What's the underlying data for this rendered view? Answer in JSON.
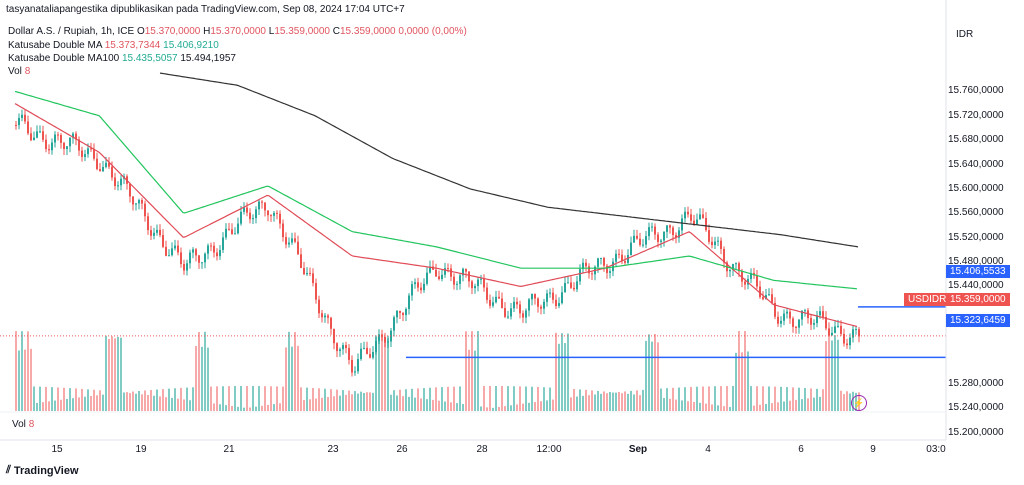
{
  "header": {
    "publisher_line": "tasyanataliapangestika dipublikasikan pada TradingView.com, Sep 08, 2024 17:04 UTC+7",
    "symbol_line": "Dollar A.S. / Rupiah, 1h, ICE",
    "ohlc": {
      "o_label": "O",
      "o_value": "15.370,0000",
      "h_label": "H",
      "h_value": "15.370,0000",
      "l_label": "L",
      "l_value": "15.359,0000",
      "c_label": "C",
      "c_value": "15.359,0000",
      "change": "0,0000 (0,00%)"
    },
    "ma_line_1": {
      "name": "Katusabe Double MA",
      "v1": "15.373,7344",
      "v2": "15.406,9210"
    },
    "ma_line_2": {
      "name": "Katusabe Double MA100",
      "v1": "15.435,5057",
      "v2": "15.494,1957"
    },
    "vol_line": {
      "name": "Vol",
      "value": "8"
    }
  },
  "vol_bottom": {
    "name": "Vol",
    "value": "8"
  },
  "unit": "IDR",
  "price_axis": [
    "15.760,0000",
    "15.720,0000",
    "15.680,0000",
    "15.640,0000",
    "15.600,0000",
    "15.560,0000",
    "15.520,0000",
    "15.480,0000",
    "15.440,0000",
    "15.280,0000",
    "15.240,0000",
    "15.200,0000"
  ],
  "tags": {
    "level_upper": "15.406,5533",
    "symbol": "USDIDR",
    "last_price": "15.359,0000",
    "level_lower": "15.323,6459"
  },
  "x_axis": [
    "15",
    "19",
    "21",
    "23",
    "26",
    "28",
    "12:00",
    "Sep",
    "4",
    "6",
    "9",
    "03:0"
  ],
  "footer": {
    "brand": "TradingView"
  },
  "colors": {
    "up": "#26a69a",
    "down": "#ef5350",
    "ma_fast": "#e04b57",
    "ma_slow": "#22c55e",
    "ma_100": "#333333",
    "level_line": "#2962ff",
    "volume_up": "#80cbc4",
    "volume_down": "#f7a9a9"
  },
  "chart_data": {
    "type": "line",
    "title": "Dollar A.S. / Rupiah, 1h, ICE",
    "ylabel": "IDR",
    "ylim": [
      15180,
      15800
    ],
    "categories": [
      "15",
      "19",
      "21",
      "23",
      "26",
      "28",
      "12:00",
      "Sep",
      "4",
      "6",
      "9"
    ],
    "series": [
      {
        "name": "USDIDR",
        "values": [
          15705,
          15650,
          15470,
          15580,
          15300,
          15475,
          15395,
          15480,
          15555,
          15400,
          15359
        ]
      },
      {
        "name": "Katusabe Double MA",
        "values": [
          15740,
          15660,
          15520,
          15590,
          15490,
          15470,
          15440,
          15470,
          15530,
          15410,
          15374
        ]
      },
      {
        "name": "Katusabe Double MA100",
        "values": [
          15760,
          15720,
          15560,
          15605,
          15530,
          15505,
          15470,
          15470,
          15490,
          15450,
          15436
        ]
      }
    ],
    "horizontal_levels": [
      15406.5533,
      15323.6459
    ],
    "last_price": 15359
  }
}
